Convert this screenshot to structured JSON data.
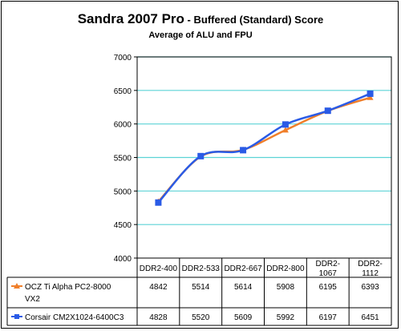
{
  "chart_data": {
    "type": "line",
    "title_part1": "Sandra 2007 Pro",
    "title_part2": " - Buffered (Standard) Score",
    "subtitle": "Average of ALU and FPU",
    "categories": [
      "DDR2-400",
      "DDR2-533",
      "DDR2-667",
      "DDR2-800",
      "DDR2-1067",
      "DDR2-1112"
    ],
    "category_lines": [
      [
        "DDR2-400"
      ],
      [
        "DDR2-533"
      ],
      [
        "DDR2-667"
      ],
      [
        "DDR2-800"
      ],
      [
        "DDR2-",
        "1067"
      ],
      [
        "DDR2-",
        "1112"
      ]
    ],
    "ylim": [
      4000,
      7000
    ],
    "yticks": [
      4000,
      4500,
      5000,
      5500,
      6000,
      6500,
      7000
    ],
    "grid": true,
    "legend_placement": "table",
    "series": [
      {
        "name": "OCZ Ti Alpha PC2-8000 VX2",
        "name_lines": [
          "OCZ Ti Alpha PC2-8000",
          "VX2"
        ],
        "color": "#f07f2a",
        "marker": "triangle",
        "values": [
          4842,
          5514,
          5614,
          5908,
          6195,
          6393
        ]
      },
      {
        "name": "Corsair CM2X1024-6400C3",
        "name_lines": [
          "Corsair CM2X1024-6400C3"
        ],
        "color": "#2a5be6",
        "marker": "square",
        "values": [
          4828,
          5520,
          5609,
          5992,
          6197,
          6451
        ]
      }
    ],
    "grid_color": "#5bd3d6",
    "axis_color": "#000000"
  }
}
